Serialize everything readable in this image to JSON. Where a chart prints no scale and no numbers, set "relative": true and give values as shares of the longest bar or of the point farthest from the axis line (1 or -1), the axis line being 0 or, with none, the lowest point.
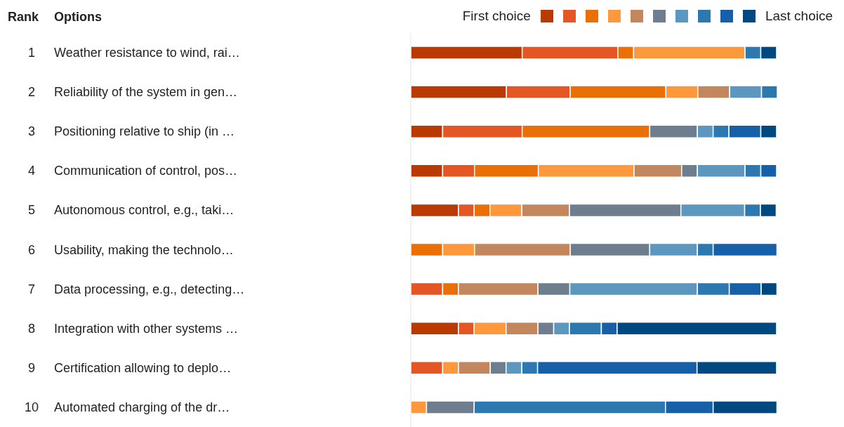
{
  "chart_data": {
    "type": "bar",
    "orientation": "horizontal",
    "stacked": true,
    "relative": true,
    "legend": "top right",
    "grid": false,
    "annotations": [
      "Rank",
      "Options",
      "1",
      "2",
      "3",
      "4",
      "5",
      "6",
      "7",
      "8",
      "9",
      "10"
    ],
    "categories": [
      "Weather resistance to wind, rai…",
      "Reliability of the system in gen…",
      "Positioning relative to ship (in …",
      "Communication of control, pos…",
      "Autonomous control, e.g., taki…",
      "Usability, making the technolo…",
      "Data processing, e.g., detecting…",
      "Integration with other systems …",
      "Certification allowing to deplo…",
      "Automated charging of the dr…"
    ],
    "series": [
      {
        "name": "First choice",
        "color": "#b93a03",
        "values": [
          0.304,
          0.261,
          0.087,
          0.087,
          0.13,
          0,
          0,
          0.13,
          0,
          0
        ]
      },
      {
        "color": "#e55625",
        "values": [
          0.261,
          0.174,
          0.217,
          0.087,
          0.043,
          0,
          0.087,
          0.043,
          0.087,
          0
        ]
      },
      {
        "color": "#ea7006",
        "values": [
          0.043,
          0.261,
          0.348,
          0.174,
          0.043,
          0.087,
          0.043,
          0,
          0,
          0
        ]
      },
      {
        "color": "#fd983d",
        "values": [
          0.304,
          0.087,
          0,
          0.261,
          0.087,
          0.087,
          0,
          0.087,
          0.043,
          0.043
        ]
      },
      {
        "color": "#c2875c",
        "values": [
          0,
          0.087,
          0,
          0.13,
          0.13,
          0.261,
          0.217,
          0.087,
          0.087,
          0
        ]
      },
      {
        "color": "#6f7e8f",
        "values": [
          0,
          0,
          0.13,
          0.043,
          0.304,
          0.217,
          0.087,
          0.043,
          0.043,
          0.13
        ]
      },
      {
        "color": "#5c97c0",
        "values": [
          0,
          0.087,
          0.043,
          0.13,
          0.174,
          0.13,
          0.348,
          0.043,
          0.043,
          0
        ]
      },
      {
        "color": "#2c78b0",
        "values": [
          0.043,
          0.043,
          0.043,
          0.043,
          0.043,
          0.043,
          0.087,
          0.087,
          0.043,
          0.522
        ]
      },
      {
        "color": "#1660aa",
        "values": [
          0,
          0,
          0.087,
          0.043,
          0,
          0.174,
          0.087,
          0.043,
          0.435,
          0.13
        ]
      },
      {
        "name": "Last choice",
        "color": "#004880",
        "values": [
          0.043,
          0,
          0.043,
          0,
          0.043,
          0,
          0.043,
          0.435,
          0.217,
          0.174
        ]
      }
    ]
  }
}
